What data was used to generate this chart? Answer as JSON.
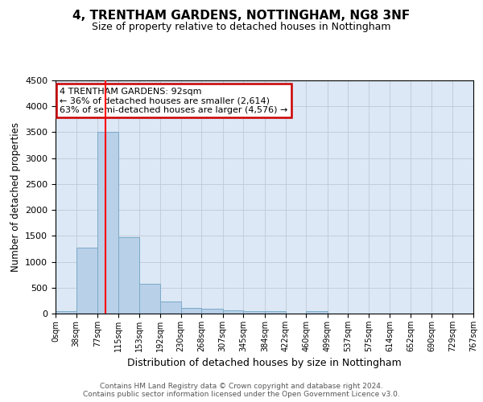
{
  "title": "4, TRENTHAM GARDENS, NOTTINGHAM, NG8 3NF",
  "subtitle": "Size of property relative to detached houses in Nottingham",
  "xlabel": "Distribution of detached houses by size in Nottingham",
  "ylabel": "Number of detached properties",
  "bar_color": "#b8d0e8",
  "bar_edge_color": "#7aaac8",
  "background_color": "#ffffff",
  "plot_bg_color": "#dce8f5",
  "grid_color": "#c0c8d8",
  "red_line_x": 92,
  "bin_edges": [
    0,
    38,
    77,
    115,
    153,
    192,
    230,
    268,
    307,
    345,
    384,
    422,
    460,
    499,
    537,
    575,
    614,
    652,
    690,
    729,
    767
  ],
  "bar_heights": [
    50,
    1270,
    3500,
    1480,
    580,
    240,
    115,
    90,
    60,
    40,
    40,
    0,
    50,
    0,
    0,
    0,
    0,
    0,
    0,
    0
  ],
  "annotation_text": "4 TRENTHAM GARDENS: 92sqm\n← 36% of detached houses are smaller (2,614)\n63% of semi-detached houses are larger (4,576) →",
  "annotation_box_color": "#ffffff",
  "annotation_box_edge_color": "#cc0000",
  "ylim": [
    0,
    4500
  ],
  "yticks": [
    0,
    500,
    1000,
    1500,
    2000,
    2500,
    3000,
    3500,
    4000,
    4500
  ],
  "footer_line1": "Contains HM Land Registry data © Crown copyright and database right 2024.",
  "footer_line2": "Contains public sector information licensed under the Open Government Licence v3.0."
}
